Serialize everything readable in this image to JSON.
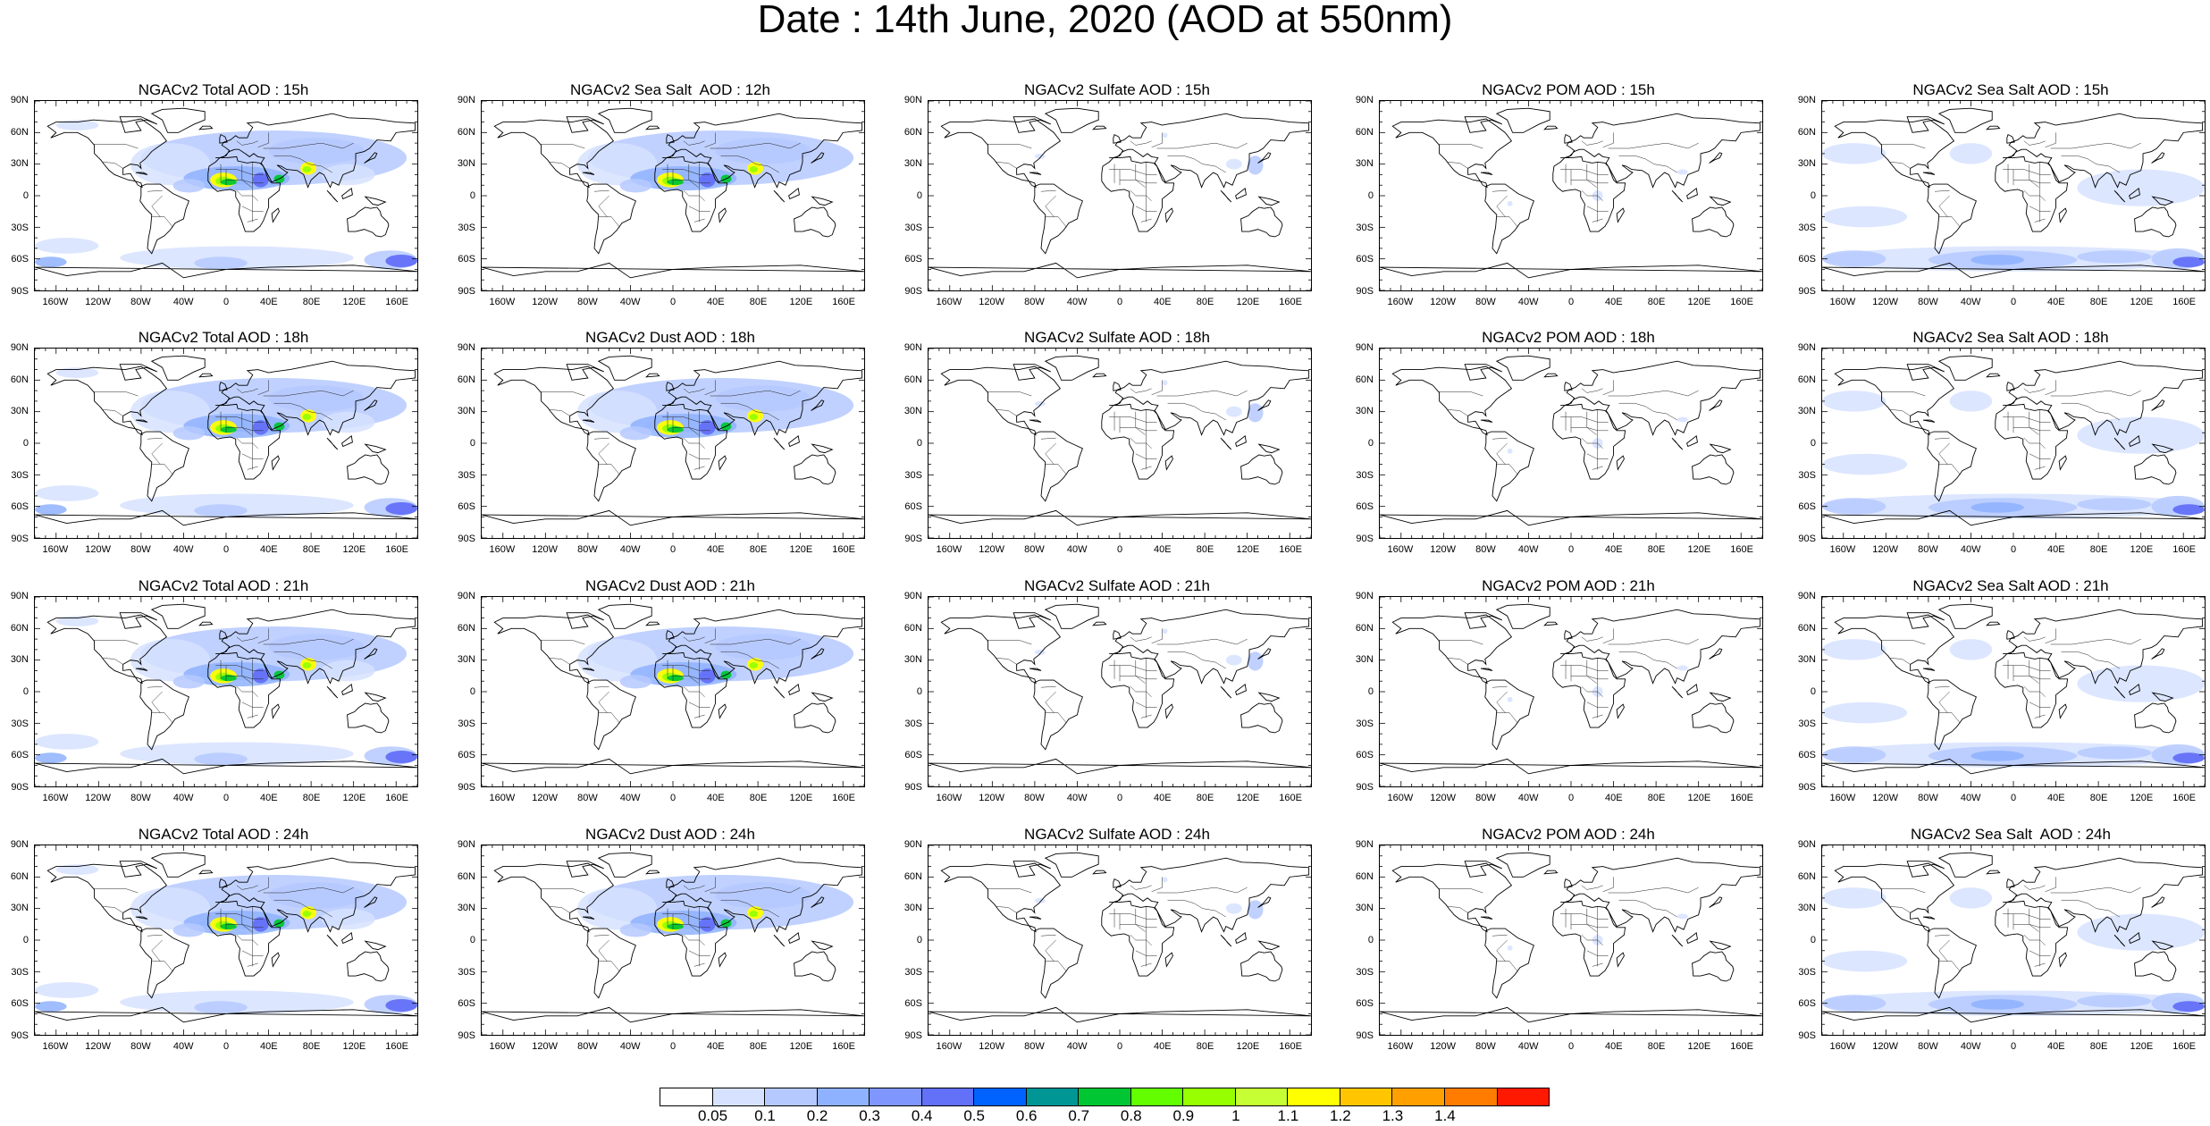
{
  "title": "Date : 14th June, 2020 (AOD at 550nm)",
  "panels": [
    {
      "title": "NGACv2 Total AOD : 15h",
      "kind": "total"
    },
    {
      "title": "NGACv2 Sea Salt  AOD : 12h",
      "kind": "dustlike"
    },
    {
      "title": "NGACv2 Sulfate AOD : 15h",
      "kind": "sulfate"
    },
    {
      "title": "NGACv2 POM AOD : 15h",
      "kind": "pom"
    },
    {
      "title": "NGACv2 Sea Salt AOD : 15h",
      "kind": "seasalt"
    },
    {
      "title": "NGACv2 Total AOD : 18h",
      "kind": "total"
    },
    {
      "title": "NGACv2 Dust AOD : 18h",
      "kind": "dustlike"
    },
    {
      "title": "NGACv2 Sulfate AOD : 18h",
      "kind": "sulfate"
    },
    {
      "title": "NGACv2 POM AOD : 18h",
      "kind": "pom"
    },
    {
      "title": "NGACv2 Sea Salt AOD : 18h",
      "kind": "seasalt"
    },
    {
      "title": "NGACv2 Total AOD : 21h",
      "kind": "total"
    },
    {
      "title": "NGACv2 Dust AOD : 21h",
      "kind": "dustlike"
    },
    {
      "title": "NGACv2 Sulfate AOD : 21h",
      "kind": "sulfate"
    },
    {
      "title": "NGACv2 POM AOD : 21h",
      "kind": "pom"
    },
    {
      "title": "NGACv2 Sea Salt AOD : 21h",
      "kind": "seasalt"
    },
    {
      "title": "NGACv2 Total AOD : 24h",
      "kind": "total"
    },
    {
      "title": "NGACv2 Dust AOD : 24h",
      "kind": "dustlike"
    },
    {
      "title": "NGACv2 Sulfate AOD : 24h",
      "kind": "sulfate"
    },
    {
      "title": "NGACv2 POM AOD : 24h",
      "kind": "pom"
    },
    {
      "title": "NGACv2 Sea Salt  AOD : 24h",
      "kind": "seasalt"
    }
  ],
  "lat_labels": [
    "90N",
    "60N",
    "30N",
    "0",
    "30S",
    "60S",
    "90S"
  ],
  "lon_labels": [
    "160W",
    "120W",
    "80W",
    "40W",
    "0",
    "40E",
    "80E",
    "120E",
    "160E"
  ],
  "colorbar": {
    "colors": [
      "#ffffff",
      "#d6e2ff",
      "#b5c9ff",
      "#8eb2ff",
      "#7f96ff",
      "#6370f8",
      "#0063ff",
      "#009696",
      "#00c633",
      "#63ff00",
      "#96ff00",
      "#c6ff33",
      "#ffff00",
      "#ffc600",
      "#ffa000",
      "#ff7c00",
      "#ff1900"
    ],
    "labels": [
      "0.05",
      "0.1",
      "0.2",
      "0.3",
      "0.4",
      "0.5",
      "0.6",
      "0.7",
      "0.8",
      "0.9",
      "1",
      "1.1",
      "1.2",
      "1.3",
      "1.4"
    ]
  }
}
